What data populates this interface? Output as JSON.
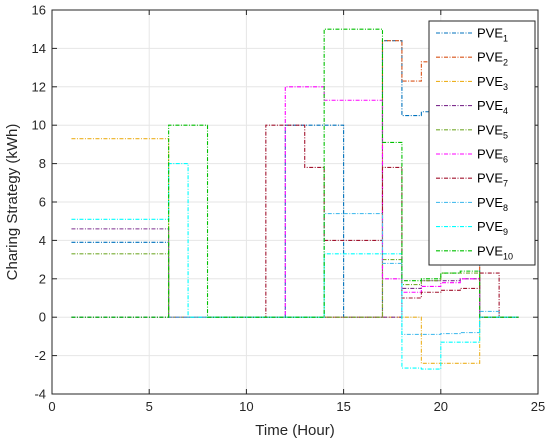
{
  "chart_data": {
    "type": "line",
    "title": "",
    "xlabel": "Time (Hour)",
    "ylabel": "Charing Strategy (kWh)",
    "xlim": [
      0,
      25
    ],
    "ylim": [
      -4,
      16
    ],
    "xticks": [
      0,
      5,
      10,
      15,
      20,
      25
    ],
    "yticks": [
      -4,
      -2,
      0,
      2,
      4,
      6,
      8,
      10,
      12,
      14,
      16
    ],
    "xtick_labels": [
      "0",
      "5",
      "10",
      "15",
      "20",
      "25"
    ],
    "ytick_labels": [
      "-4",
      "-2",
      "0",
      "2",
      "4",
      "6",
      "8",
      "10",
      "12",
      "14",
      "16"
    ],
    "grid": true,
    "legend_position": "top-right",
    "step": "post",
    "series": [
      {
        "name": "PVE",
        "sub": "1",
        "color": "#0072BD",
        "x": [
          1,
          6,
          12,
          13,
          14,
          15,
          16,
          17,
          18,
          19,
          20,
          21,
          22,
          23,
          24
        ],
        "y": [
          3.9,
          0,
          10.0,
          10.0,
          10.0,
          0,
          0,
          14.4,
          10.5,
          10.7,
          10.8,
          11.0,
          0,
          0,
          0
        ]
      },
      {
        "name": "PVE",
        "sub": "2",
        "color": "#D95319",
        "x": [
          1,
          6,
          17,
          18,
          19,
          20,
          21,
          22,
          23,
          24
        ],
        "y": [
          0,
          0,
          14.4,
          12.3,
          13.3,
          13.6,
          13.8,
          0,
          0,
          0
        ]
      },
      {
        "name": "PVE",
        "sub": "3",
        "color": "#EDB120",
        "x": [
          1,
          6,
          19,
          20,
          21,
          22,
          23,
          24
        ],
        "y": [
          9.3,
          0,
          -2.4,
          -2.4,
          -2.4,
          0,
          0,
          0
        ]
      },
      {
        "name": "PVE",
        "sub": "4",
        "color": "#7E2F8E",
        "x": [
          1,
          6,
          18,
          19,
          20,
          21,
          22,
          23,
          24
        ],
        "y": [
          4.6,
          0,
          1.5,
          1.9,
          1.9,
          2.0,
          0,
          0,
          0
        ]
      },
      {
        "name": "PVE",
        "sub": "5",
        "color": "#77AC30",
        "x": [
          1,
          6,
          17,
          18,
          19,
          20,
          21,
          22,
          23,
          24
        ],
        "y": [
          3.3,
          0,
          3.0,
          1.7,
          1.9,
          2.3,
          2.3,
          0,
          0,
          0
        ]
      },
      {
        "name": "PVE",
        "sub": "6",
        "color": "#FF00FF",
        "x": [
          1,
          12,
          14,
          17,
          18,
          19,
          20,
          21,
          22,
          23,
          24
        ],
        "y": [
          0,
          12.0,
          11.3,
          2.0,
          1.3,
          1.6,
          1.8,
          2.0,
          0,
          0,
          0
        ]
      },
      {
        "name": "PVE",
        "sub": "7",
        "color": "#A2142F",
        "x": [
          1,
          11,
          13,
          14,
          17,
          18,
          19,
          20,
          21,
          22,
          23,
          24
        ],
        "y": [
          0,
          10.0,
          7.8,
          4.0,
          7.8,
          1.0,
          1.3,
          1.4,
          1.5,
          2.3,
          0,
          0
        ]
      },
      {
        "name": "PVE",
        "sub": "8",
        "color": "#4DBEEE",
        "x": [
          1,
          14,
          17,
          18,
          19,
          20,
          21,
          22,
          23,
          24
        ],
        "y": [
          0,
          5.4,
          2.8,
          -0.9,
          -0.9,
          -0.85,
          -0.8,
          0.3,
          0,
          0
        ]
      },
      {
        "name": "PVE",
        "sub": "9",
        "color": "#00FFFF",
        "x": [
          1,
          6,
          7,
          14,
          17,
          18,
          19,
          20,
          21,
          22,
          23,
          24
        ],
        "y": [
          5.1,
          8.0,
          0,
          3.3,
          3.3,
          -2.65,
          -2.7,
          -1.3,
          -1.3,
          0,
          0,
          0
        ]
      },
      {
        "name": "PVE",
        "sub": "10",
        "color": "#00C000",
        "x": [
          1,
          6,
          8,
          14,
          17,
          18,
          19,
          20,
          21,
          22,
          23,
          24
        ],
        "y": [
          0,
          10.0,
          0,
          15.0,
          9.1,
          1.9,
          2.0,
          2.3,
          2.4,
          0,
          0,
          0
        ]
      }
    ]
  }
}
